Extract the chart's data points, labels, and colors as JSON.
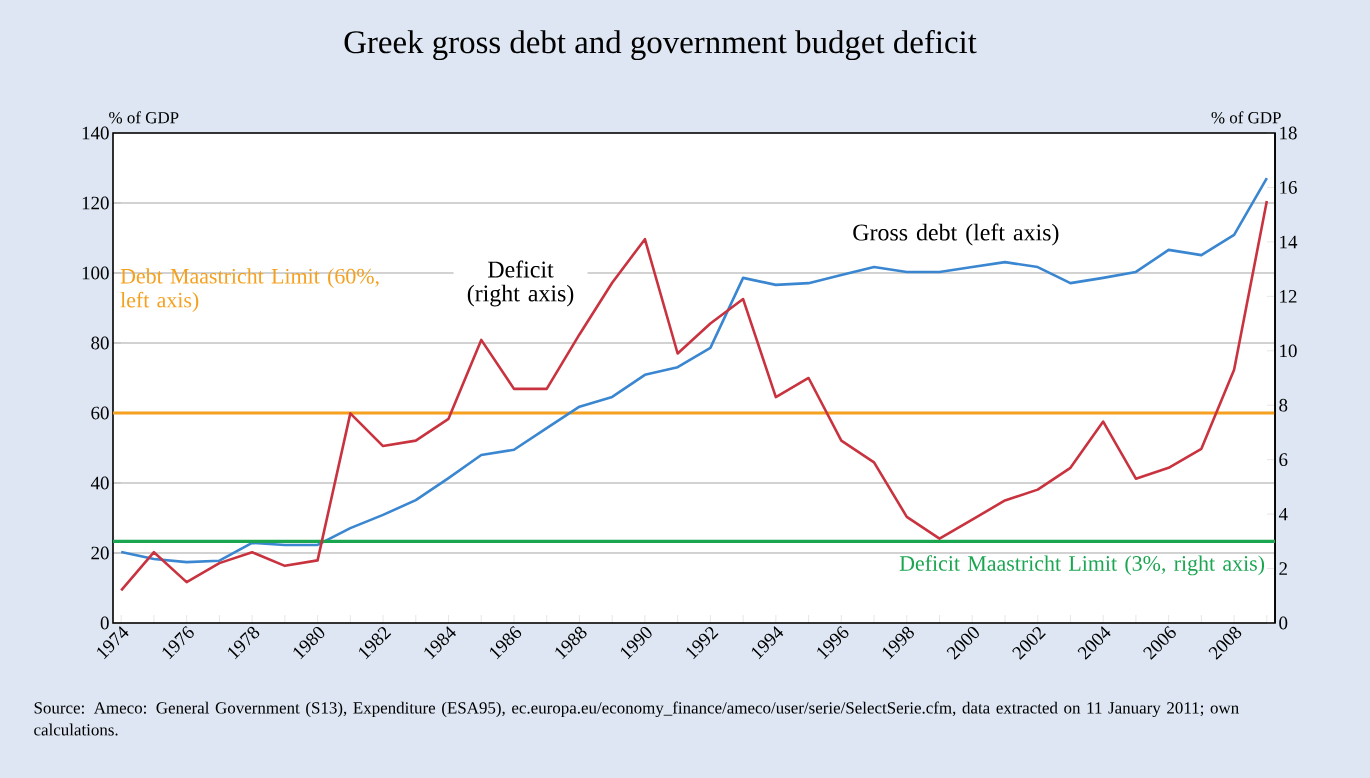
{
  "chart_data": {
    "type": "line",
    "title": "Greek gross debt and government budget deficit",
    "ylabel": "% of GDP",
    "y2label": "% of GDP",
    "categories": [
      "1974",
      null,
      "1976",
      null,
      "1978",
      null,
      "1980",
      null,
      "1982",
      null,
      "1984",
      null,
      "1986",
      null,
      "1988",
      null,
      "1990",
      null,
      "1992",
      null,
      "1994",
      null,
      "1996",
      null,
      "1998",
      null,
      "2000",
      null,
      "2002",
      null,
      "2004",
      null,
      "2006",
      null,
      "2008",
      null
    ],
    "series": [
      {
        "name": "Gross debt (left axis)",
        "color": "#3a86d0",
        "values": [
          20.3,
          18.3,
          17.4,
          17.8,
          22.9,
          22.3,
          22.3,
          27.1,
          30.9,
          35.1,
          41.4,
          48.0,
          49.5,
          55.7,
          61.8,
          64.6,
          70.9,
          73.1,
          78.6,
          98.6,
          96.6,
          97.1,
          99.4,
          101.7,
          100.3,
          100.3,
          101.7,
          103.1,
          101.7,
          97.1,
          98.6,
          100.3,
          106.6,
          105.1,
          110.9,
          127.1
        ]
      },
      {
        "name": "Deficit (right axis)",
        "color": "#c8333f",
        "axis": "y2",
        "values": [
          1.2,
          2.6,
          1.5,
          2.2,
          2.6,
          2.1,
          2.3,
          7.7,
          6.5,
          6.7,
          7.5,
          10.4,
          8.6,
          8.6,
          10.6,
          12.5,
          14.1,
          9.9,
          11.0,
          11.9,
          8.3,
          9.0,
          6.7,
          5.9,
          3.9,
          3.1,
          3.8,
          4.5,
          4.9,
          5.7,
          7.4,
          5.3,
          5.7,
          6.4,
          9.3,
          15.5
        ]
      }
    ],
    "ylim": [
      0,
      140
    ],
    "yticks": [
      0,
      20,
      40,
      60,
      80,
      100,
      120,
      140
    ],
    "y2lim": [
      0,
      18
    ],
    "y2ticks": [
      0,
      2,
      4,
      6,
      8,
      10,
      12,
      14,
      16,
      18
    ],
    "grid": "y",
    "legend": false,
    "marker": "none",
    "line_style": "solid",
    "ref_lines": [
      {
        "axis": "y",
        "value": 60,
        "label": "Debt Maastricht Limit (60%, left axis)",
        "color": "#f5a01e"
      },
      {
        "axis": "y2",
        "value": 3,
        "label": "Deficit Maastricht Limit (3%, right axis)",
        "color": "#1aa550"
      }
    ],
    "annotations": [
      "Source: Ameco: General Government (S13), Expenditure (ESA95), ec.europa.eu/economy_finance/ameco/user/serie/SelectSerie.cfm, data extracted on 11 January 2011; own calculations."
    ]
  }
}
